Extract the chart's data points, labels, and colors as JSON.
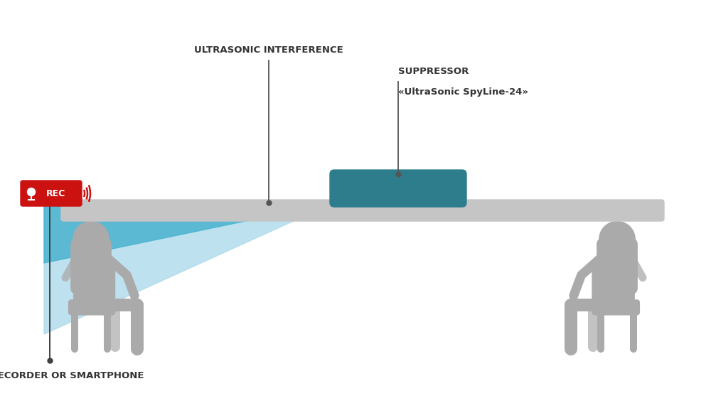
{
  "bg_color": "#ffffff",
  "figure_size": [
    10.0,
    5.57
  ],
  "dpi": 100,
  "person_color": "#aaaaaa",
  "table_color": "#c5c5c5",
  "device_color": "#2e7d8c",
  "beam_light_color": "#a8d8ea",
  "beam_mid_color": "#4ab3d0",
  "line_color": "#404040",
  "rec_bg_color": "#cc1111",
  "rec_text_color": "#ffffff",
  "wave_color": "#cc1111",
  "label_color": "#333333",
  "annotation_line_color": "#555555",
  "title_ultrasonic": "ULTRASONIC INTERFERENCE",
  "title_suppressor_line1": "SUPPRESSOR",
  "title_suppressor_line2": "«UltraSonic SpyLine-24»",
  "title_recorder": "VOICE RECORDER OR SMARTPHONE",
  "label_fontsize": 9.5,
  "label_fontweight": "bold"
}
